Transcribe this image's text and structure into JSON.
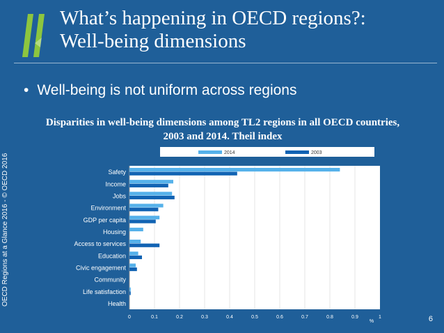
{
  "slide": {
    "title_line1": "What’s happening in OECD regions?:",
    "title_line2": "Well-being dimensions",
    "bullet": "Well-being is not uniform across regions",
    "side_note": "OECD Regions at a Glance 2016 - © OECD 2016",
    "page_number": "6"
  },
  "colors": {
    "background": "#1f5f99",
    "series_2014": "#55b1ea",
    "series_2003": "#1163b3",
    "logo_green": "#8dc63f"
  },
  "chart_data": {
    "type": "bar",
    "orientation": "horizontal",
    "title": "Disparities in well-being dimensions among TL2 regions in all OECD countries, 2003 and 2014. Theil index",
    "xlabel": "%",
    "ylabel": "",
    "xlim": [
      0,
      1
    ],
    "x_ticks": [
      "0",
      "0.1",
      "0.2",
      "0.3",
      "0.4",
      "0.5",
      "0.6",
      "0.7",
      "0.8",
      "0.9",
      "1"
    ],
    "grid": true,
    "legend_position": "top",
    "categories": [
      "Safety",
      "Income",
      "Jobs",
      "Environment",
      "GDP per capita",
      "Housing",
      "Access to services",
      "Education",
      "Civic engagement",
      "Community",
      "Life satisfaction",
      "Health"
    ],
    "series": [
      {
        "name": "2014",
        "values": [
          0.84,
          0.175,
          0.17,
          0.135,
          0.12,
          0.055,
          0.045,
          0.035,
          0.025,
          0.0,
          0.005,
          0.0
        ]
      },
      {
        "name": "2003",
        "values": [
          0.43,
          0.155,
          0.18,
          0.115,
          0.105,
          0.0,
          0.12,
          0.05,
          0.03,
          0.0,
          0.005,
          0.0
        ]
      }
    ]
  }
}
